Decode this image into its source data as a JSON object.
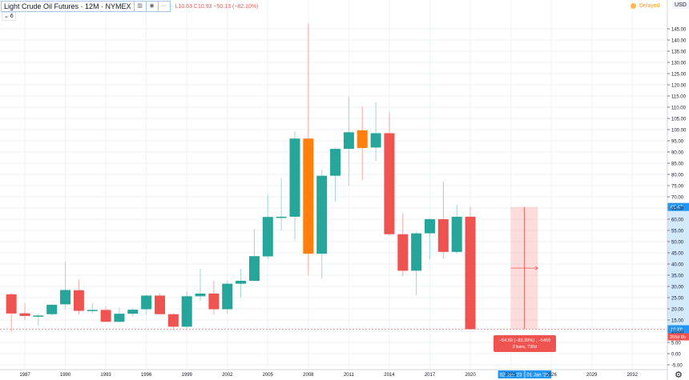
{
  "header": {
    "symbol_title": "Light Crude Oil Futures · 12M · NYMEX",
    "ohlc_values": "L10.63  C10.93  −50.13 (−82.10%)",
    "collapse_label": "⌄ 6",
    "delayed_label": "Delayed",
    "currency_label": "USD"
  },
  "colors": {
    "up": "#26a69a",
    "down": "#ef5350",
    "highlight": "#ff7f0e",
    "grid": "#eef3f6",
    "axis_text": "#131722",
    "accent": "#2196f3"
  },
  "price_labels": {
    "last_price": "65.47",
    "current_price": "10.88",
    "countdown": "255d 8h"
  },
  "measure_tool": {
    "line1": "−54.59 (−83.39%) , −5459",
    "line2": "2 bars, 730d",
    "start_date": "02 Jan '23",
    "end_date": "01 Jan '25"
  },
  "chart_data": {
    "type": "candlestick",
    "title": "Light Crude Oil Futures · 12M · NYMEX",
    "xlabel": "",
    "ylabel": "USD",
    "ylim": [
      -5,
      145
    ],
    "y_ticks": [
      -5,
      0,
      5,
      10,
      15,
      20,
      25,
      30,
      35,
      40,
      45,
      50,
      55,
      60,
      65,
      70,
      75,
      80,
      85,
      90,
      95,
      100,
      105,
      110,
      115,
      120,
      125,
      130,
      135,
      140,
      145
    ],
    "x_ticks": [
      "1987",
      "1990",
      "1993",
      "1996",
      "1999",
      "2002",
      "2005",
      "2008",
      "2011",
      "2014",
      "2017",
      "2020",
      "2023",
      "2026",
      "2029",
      "2032"
    ],
    "grid": true,
    "candles": [
      {
        "year": 1986,
        "open": 26.5,
        "high": 27.0,
        "low": 9.8,
        "close": 17.9,
        "color": "down"
      },
      {
        "year": 1987,
        "open": 18.0,
        "high": 22.5,
        "low": 15.0,
        "close": 16.8,
        "color": "down"
      },
      {
        "year": 1988,
        "open": 16.9,
        "high": 18.0,
        "low": 12.5,
        "close": 17.0,
        "color": "up"
      },
      {
        "year": 1989,
        "open": 17.6,
        "high": 22.0,
        "low": 17.0,
        "close": 21.8,
        "color": "up"
      },
      {
        "year": 1990,
        "open": 22.0,
        "high": 41.2,
        "low": 19.8,
        "close": 28.4,
        "color": "up"
      },
      {
        "year": 1991,
        "open": 28.3,
        "high": 33.0,
        "low": 17.5,
        "close": 19.1,
        "color": "down"
      },
      {
        "year": 1992,
        "open": 19.2,
        "high": 22.5,
        "low": 17.8,
        "close": 19.5,
        "color": "up"
      },
      {
        "year": 1993,
        "open": 19.5,
        "high": 21.0,
        "low": 14.5,
        "close": 14.2,
        "color": "down"
      },
      {
        "year": 1994,
        "open": 14.2,
        "high": 20.5,
        "low": 13.8,
        "close": 17.8,
        "color": "up"
      },
      {
        "year": 1995,
        "open": 17.8,
        "high": 20.3,
        "low": 16.5,
        "close": 19.6,
        "color": "up"
      },
      {
        "year": 1996,
        "open": 19.8,
        "high": 26.5,
        "low": 17.3,
        "close": 25.9,
        "color": "up"
      },
      {
        "year": 1997,
        "open": 25.9,
        "high": 27.0,
        "low": 17.6,
        "close": 17.6,
        "color": "down"
      },
      {
        "year": 1998,
        "open": 17.6,
        "high": 18.0,
        "low": 10.4,
        "close": 12.0,
        "color": "down"
      },
      {
        "year": 1999,
        "open": 12.0,
        "high": 28.0,
        "low": 11.2,
        "close": 25.6,
        "color": "up"
      },
      {
        "year": 2000,
        "open": 25.6,
        "high": 37.8,
        "low": 23.7,
        "close": 26.8,
        "color": "up"
      },
      {
        "year": 2001,
        "open": 26.8,
        "high": 32.7,
        "low": 17.5,
        "close": 19.8,
        "color": "down"
      },
      {
        "year": 2002,
        "open": 19.8,
        "high": 32.5,
        "low": 17.9,
        "close": 31.2,
        "color": "up"
      },
      {
        "year": 2003,
        "open": 31.2,
        "high": 37.8,
        "low": 25.0,
        "close": 32.5,
        "color": "up"
      },
      {
        "year": 2004,
        "open": 32.5,
        "high": 55.7,
        "low": 32.2,
        "close": 43.5,
        "color": "up"
      },
      {
        "year": 2005,
        "open": 43.4,
        "high": 70.9,
        "low": 42.1,
        "close": 61.0,
        "color": "up"
      },
      {
        "year": 2006,
        "open": 61.0,
        "high": 78.4,
        "low": 55.0,
        "close": 61.1,
        "color": "up"
      },
      {
        "year": 2007,
        "open": 61.1,
        "high": 99.3,
        "low": 50.5,
        "close": 96.0,
        "color": "up"
      },
      {
        "year": 2008,
        "open": 96.0,
        "high": 147.3,
        "low": 35.1,
        "close": 44.6,
        "color": "highlight"
      },
      {
        "year": 2009,
        "open": 44.6,
        "high": 82.0,
        "low": 33.5,
        "close": 79.4,
        "color": "up"
      },
      {
        "year": 2010,
        "open": 79.4,
        "high": 92.0,
        "low": 68.0,
        "close": 91.4,
        "color": "up"
      },
      {
        "year": 2011,
        "open": 91.4,
        "high": 114.8,
        "low": 75.0,
        "close": 98.8,
        "color": "up"
      },
      {
        "year": 2012,
        "open": 99.7,
        "high": 110.5,
        "low": 77.3,
        "close": 91.8,
        "color": "highlight"
      },
      {
        "year": 2013,
        "open": 92.0,
        "high": 112.2,
        "low": 86.0,
        "close": 98.4,
        "color": "up"
      },
      {
        "year": 2014,
        "open": 98.4,
        "high": 107.7,
        "low": 52.5,
        "close": 53.3,
        "color": "down"
      },
      {
        "year": 2015,
        "open": 53.3,
        "high": 62.6,
        "low": 34.5,
        "close": 37.0,
        "color": "down"
      },
      {
        "year": 2016,
        "open": 37.0,
        "high": 54.5,
        "low": 26.1,
        "close": 53.7,
        "color": "up"
      },
      {
        "year": 2017,
        "open": 53.7,
        "high": 60.5,
        "low": 42.0,
        "close": 60.0,
        "color": "up"
      },
      {
        "year": 2018,
        "open": 60.0,
        "high": 76.9,
        "low": 42.4,
        "close": 45.4,
        "color": "down"
      },
      {
        "year": 2019,
        "open": 45.4,
        "high": 66.6,
        "low": 44.5,
        "close": 61.1,
        "color": "up"
      },
      {
        "year": 2020,
        "open": 61.1,
        "high": 65.6,
        "low": 10.6,
        "close": 10.9,
        "color": "down"
      }
    ]
  }
}
